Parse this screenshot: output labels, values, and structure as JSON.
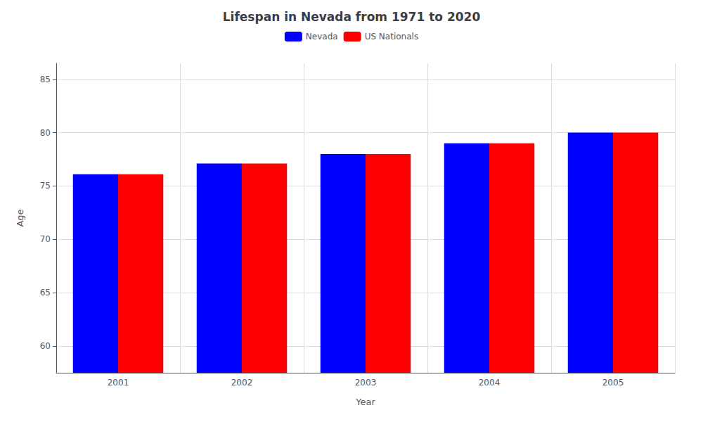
{
  "chart_data": {
    "type": "bar",
    "title": "Lifespan in Nevada from 1971 to 2020",
    "xlabel": "Year",
    "ylabel": "Age",
    "categories": [
      "2001",
      "2002",
      "2003",
      "2004",
      "2005"
    ],
    "series": [
      {
        "name": "Nevada",
        "color": "#0000ff",
        "values": [
          76.1,
          77.1,
          78.0,
          79.0,
          80.0
        ]
      },
      {
        "name": "US Nationals",
        "color": "#ff0000",
        "values": [
          76.1,
          77.1,
          78.0,
          79.0,
          80.0
        ]
      }
    ],
    "ylim": [
      57.5,
      86.5
    ],
    "yticks": [
      60,
      65,
      70,
      75,
      80,
      85
    ],
    "grid": true,
    "legend": "top"
  }
}
